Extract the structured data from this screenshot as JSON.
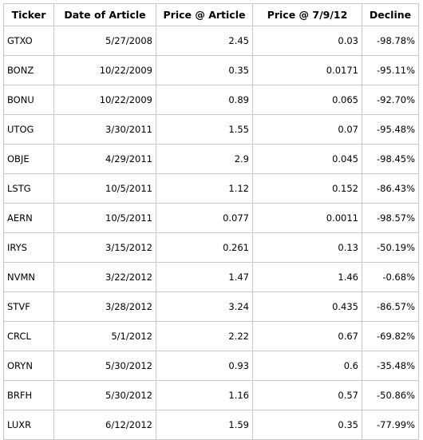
{
  "table": {
    "headers": [
      "Ticker",
      "Date of Article",
      "Price @ Article",
      "Price @ 7/9/12",
      "Decline"
    ],
    "rows": [
      [
        "GTXO",
        "5/27/2008",
        "2.45",
        "0.03",
        "-98.78%"
      ],
      [
        "BONZ",
        "10/22/2009",
        "0.35",
        "0.0171",
        "-95.11%"
      ],
      [
        "BONU",
        "10/22/2009",
        "0.89",
        "0.065",
        "-92.70%"
      ],
      [
        "UTOG",
        "3/30/2011",
        "1.55",
        "0.07",
        "-95.48%"
      ],
      [
        "OBJE",
        "4/29/2011",
        "2.9",
        "0.045",
        "-98.45%"
      ],
      [
        "LSTG",
        "10/5/2011",
        "1.12",
        "0.152",
        "-86.43%"
      ],
      [
        "AERN",
        "10/5/2011",
        "0.077",
        "0.0011",
        "-98.57%"
      ],
      [
        "IRYS",
        "3/15/2012",
        "0.261",
        "0.13",
        "-50.19%"
      ],
      [
        "NVMN",
        "3/22/2012",
        "1.47",
        "1.46",
        "-0.68%"
      ],
      [
        "STVF",
        "3/28/2012",
        "3.24",
        "0.435",
        "-86.57%"
      ],
      [
        "CRCL",
        "5/1/2012",
        "2.22",
        "0.67",
        "-69.82%"
      ],
      [
        "ORYN",
        "5/30/2012",
        "0.93",
        "0.6",
        "-35.48%"
      ],
      [
        "BRFH",
        "5/30/2012",
        "1.16",
        "0.57",
        "-50.86%"
      ],
      [
        "LUXR",
        "6/12/2012",
        "1.59",
        "0.35",
        "-77.99%"
      ]
    ]
  }
}
